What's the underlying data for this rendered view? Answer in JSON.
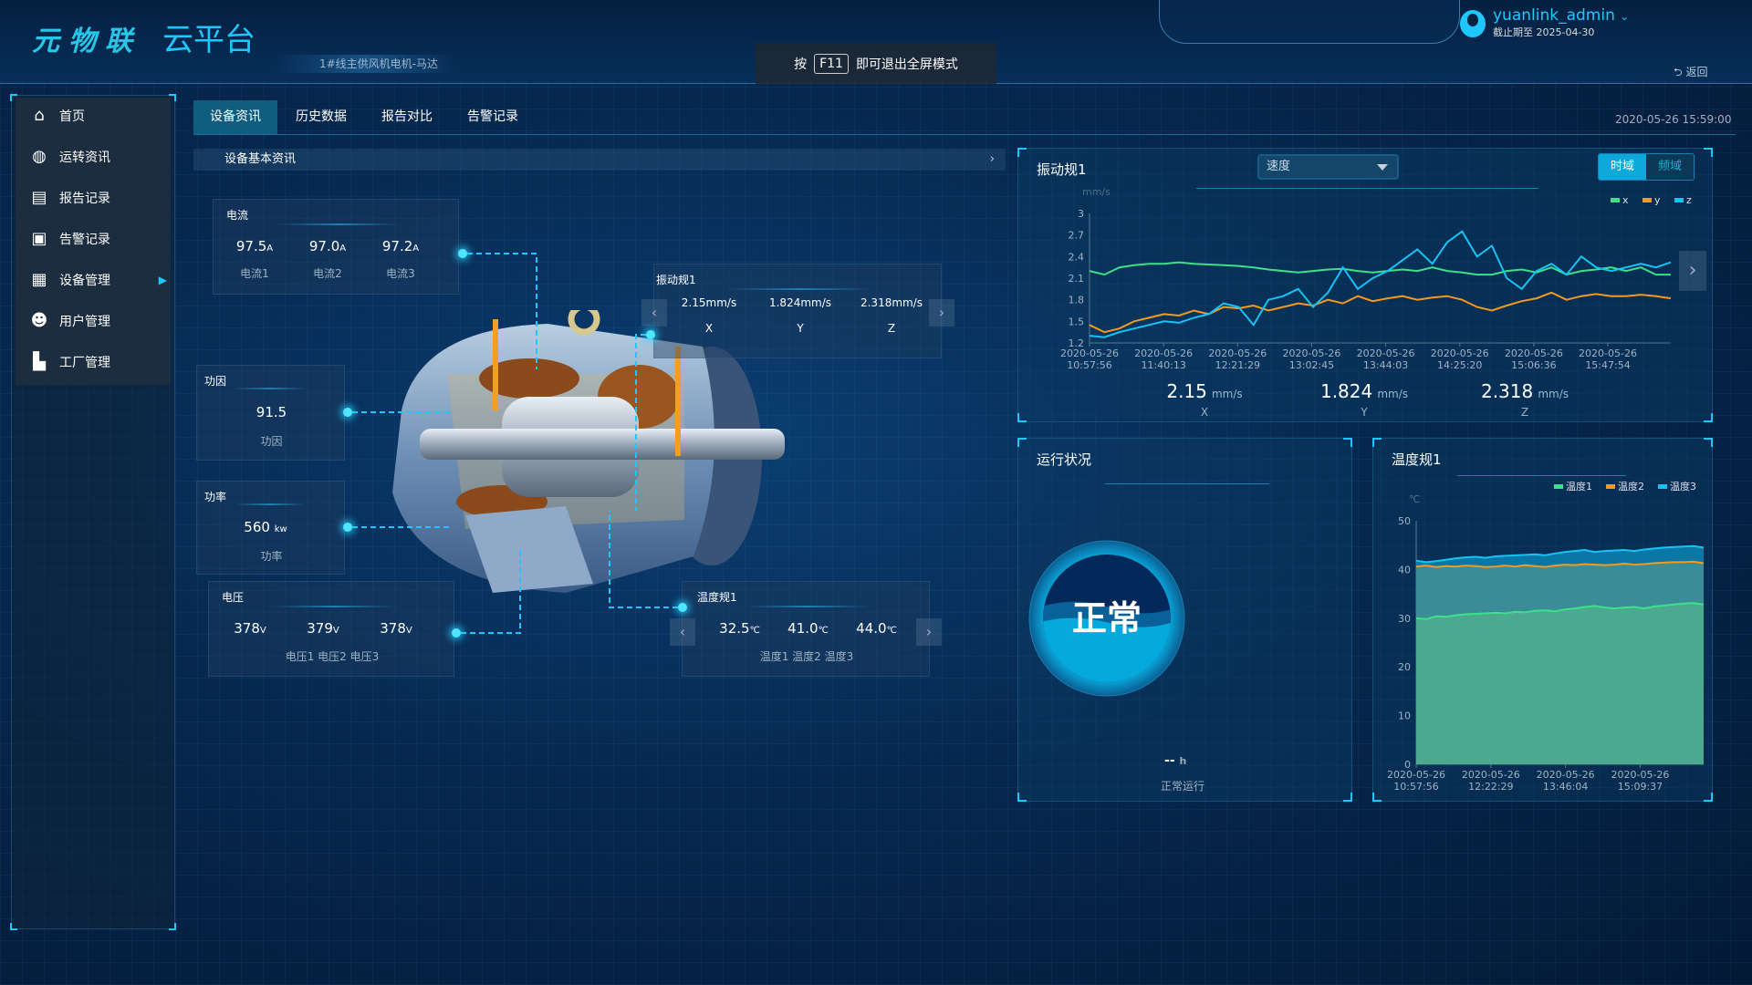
{
  "header": {
    "logo_main": "元物联",
    "logo_sub": "云平台",
    "device_name": "1#线主供风机电机-马达",
    "fullscreen_hint": {
      "prefix": "按",
      "key": "F11",
      "suffix": "即可退出全屏模式"
    },
    "user": {
      "name": "yuanlink_admin",
      "expiry": "截止期至 2025-04-30"
    },
    "back_label": "返回",
    "timestamp": "2020-05-26 15:59:00"
  },
  "sidebar": {
    "items": [
      {
        "label": "首页",
        "icon": "home-icon"
      },
      {
        "label": "运转资讯",
        "icon": "globe-icon"
      },
      {
        "label": "报告记录",
        "icon": "report-clock-icon"
      },
      {
        "label": "告警记录",
        "icon": "alarm-bell-icon"
      },
      {
        "label": "设备管理",
        "icon": "grid-icon",
        "has_submenu": true
      },
      {
        "label": "用户管理",
        "icon": "user-gear-icon"
      },
      {
        "label": "工厂管理",
        "icon": "factory-icon"
      }
    ]
  },
  "tabs": [
    {
      "label": "设备资讯",
      "active": true
    },
    {
      "label": "历史数据"
    },
    {
      "label": "报告对比"
    },
    {
      "label": "告警记录"
    }
  ],
  "section_title": "设备基本资讯",
  "current": {
    "title": "电流",
    "values": [
      {
        "v": "97.5",
        "u": "A",
        "l": "电流1"
      },
      {
        "v": "97.0",
        "u": "A",
        "l": "电流2"
      },
      {
        "v": "97.2",
        "u": "A",
        "l": "电流3"
      }
    ]
  },
  "power_factor": {
    "title": "功因",
    "value": "91.5",
    "label": "功因"
  },
  "power": {
    "title": "功率",
    "value": "560",
    "unit": "kw",
    "label": "功率"
  },
  "voltage": {
    "title": "电压",
    "values": [
      {
        "v": "378",
        "u": "V"
      },
      {
        "v": "379",
        "u": "V"
      },
      {
        "v": "378",
        "u": "V"
      }
    ],
    "labels": "电压1 电压2 电压3"
  },
  "vibration_box": {
    "title": "振动规1",
    "values": [
      {
        "v": "2.15mm/s",
        "l": "X"
      },
      {
        "v": "1.824mm/s",
        "l": "Y"
      },
      {
        "v": "2.318mm/s",
        "l": "Z"
      }
    ]
  },
  "temperature_box": {
    "title": "温度规1",
    "values": [
      {
        "v": "32.5",
        "u": "℃"
      },
      {
        "v": "41.0",
        "u": "℃"
      },
      {
        "v": "44.0",
        "u": "℃"
      }
    ],
    "labels": "温度1 温度2 温度3"
  },
  "vibration_panel": {
    "title": "振动规1",
    "select_value": "速度",
    "mode_on": "时域",
    "mode_off": "频域",
    "readouts": [
      {
        "v": "2.15",
        "u": "mm/s",
        "l": "X"
      },
      {
        "v": "1.824",
        "u": "mm/s",
        "l": "Y"
      },
      {
        "v": "2.318",
        "u": "mm/s",
        "l": "Z"
      }
    ]
  },
  "status_panel": {
    "title": "运行状况",
    "status": "正常",
    "hours": "--",
    "hours_unit": "h",
    "status_label": "正常运行"
  },
  "temp_panel": {
    "title": "温度规1"
  },
  "colors": {
    "x": "#3ee08a",
    "y": "#f39a1e",
    "z": "#15c3f5",
    "accent": "#1ec8ff"
  },
  "chart_data": [
    {
      "type": "line",
      "unit": "mm/s",
      "ylim": [
        1.2,
        3
      ],
      "yticks": [
        1.2,
        1.5,
        1.8,
        2.1,
        2.4,
        2.7,
        3
      ],
      "xticks": [
        "2020-05-26 10:57:56",
        "2020-05-26 11:40:13",
        "2020-05-26 12:21:29",
        "2020-05-26 13:02:45",
        "2020-05-26 13:44:03",
        "2020-05-26 14:25:20",
        "2020-05-26 15:06:36",
        "2020-05-26 15:47:54"
      ],
      "legend": "top-right",
      "series": [
        {
          "name": "x",
          "values": [
            2.2,
            2.15,
            2.25,
            2.28,
            2.3,
            2.3,
            2.32,
            2.3,
            2.29,
            2.28,
            2.27,
            2.25,
            2.22,
            2.2,
            2.18,
            2.2,
            2.22,
            2.23,
            2.2,
            2.18,
            2.2,
            2.22,
            2.2,
            2.25,
            2.2,
            2.18,
            2.15,
            2.15,
            2.2,
            2.22,
            2.18,
            2.25,
            2.15,
            2.2,
            2.22,
            2.25,
            2.2,
            2.25,
            2.15,
            2.15
          ]
        },
        {
          "name": "y",
          "values": [
            1.45,
            1.35,
            1.4,
            1.5,
            1.55,
            1.6,
            1.58,
            1.65,
            1.6,
            1.7,
            1.68,
            1.72,
            1.65,
            1.7,
            1.75,
            1.72,
            1.8,
            1.75,
            1.85,
            1.78,
            1.82,
            1.85,
            1.8,
            1.83,
            1.85,
            1.8,
            1.7,
            1.65,
            1.72,
            1.78,
            1.82,
            1.9,
            1.8,
            1.85,
            1.88,
            1.85,
            1.85,
            1.87,
            1.85,
            1.82
          ]
        },
        {
          "name": "z",
          "values": [
            1.3,
            1.28,
            1.35,
            1.4,
            1.45,
            1.5,
            1.48,
            1.55,
            1.6,
            1.75,
            1.7,
            1.45,
            1.8,
            1.85,
            1.95,
            1.7,
            1.9,
            2.25,
            1.95,
            2.1,
            2.2,
            2.35,
            2.5,
            2.3,
            2.6,
            2.75,
            2.4,
            2.55,
            2.1,
            1.95,
            2.2,
            2.3,
            2.15,
            2.4,
            2.25,
            2.2,
            2.25,
            2.3,
            2.25,
            2.32
          ]
        }
      ]
    },
    {
      "type": "area",
      "unit": "℃",
      "ylim": [
        0,
        50
      ],
      "yticks": [
        0,
        10,
        20,
        30,
        40,
        50
      ],
      "xticks": [
        "2020-05-26 10:57:56",
        "2020-05-26 12:22:29",
        "2020-05-26 13:46:04",
        "2020-05-26 15:09:37"
      ],
      "legend": "top-right",
      "series": [
        {
          "name": "温度1",
          "values": [
            30,
            29.8,
            30.4,
            30.3,
            30.6,
            30.8,
            30.9,
            31,
            31.1,
            31,
            31.3,
            31.2,
            31.5,
            31.6,
            31.4,
            31.8,
            32,
            32.3,
            32.5,
            32.2,
            32,
            32.2,
            32.3,
            32,
            32.4,
            32.6,
            32.8,
            33,
            33.1,
            32.8
          ]
        },
        {
          "name": "温度2",
          "values": [
            40.6,
            40.8,
            40.5,
            40.7,
            40.6,
            40.8,
            40.7,
            40.5,
            40.6,
            40.8,
            40.6,
            40.9,
            40.7,
            40.5,
            40.8,
            41,
            40.9,
            41.1,
            41,
            40.9,
            41,
            41.2,
            41,
            41.1,
            41.3,
            41.4,
            41.5,
            41.5,
            41.6,
            41.3
          ]
        },
        {
          "name": "温度3",
          "values": [
            41.8,
            41.5,
            41.7,
            42,
            42.3,
            42.5,
            42.6,
            42.4,
            42.7,
            42.8,
            42.9,
            43,
            43.1,
            42.9,
            43.3,
            43.6,
            43.8,
            44,
            43.6,
            43.8,
            43.9,
            44,
            43.8,
            44.1,
            44.3,
            44.5,
            44.6,
            44.7,
            44.8,
            44.5
          ]
        }
      ]
    }
  ]
}
